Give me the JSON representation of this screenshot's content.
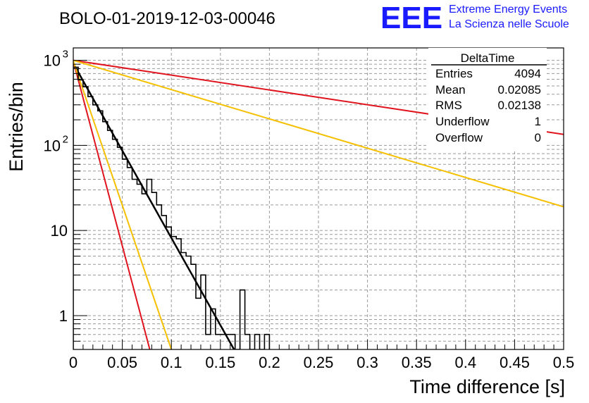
{
  "header": {
    "title": "BOLO-01-2019-12-03-00046",
    "logo": {
      "mark": "EEE",
      "line1": "Extreme Energy Events",
      "line2": "La Scienza nelle Scuole",
      "color": "#1a1aff"
    }
  },
  "stats_box": {
    "title": "DeltaTime",
    "rows": [
      {
        "label": "Entries",
        "value": "4094"
      },
      {
        "label": "Mean",
        "value": "0.02085"
      },
      {
        "label": "RMS",
        "value": "0.02138"
      },
      {
        "label": "Underflow",
        "value": "1"
      },
      {
        "label": "Overflow",
        "value": "0"
      }
    ]
  },
  "chart_data": {
    "type": "line",
    "xlabel": "Time difference [s]",
    "ylabel": "Entries/bin",
    "xlim": [
      0,
      0.5
    ],
    "ylim": [
      0.4,
      1400
    ],
    "log_y": true,
    "grid": true,
    "x_ticks": [
      0,
      0.05,
      0.1,
      0.15,
      0.2,
      0.25,
      0.3,
      0.35,
      0.4,
      0.45,
      0.5
    ],
    "x_tick_labels": [
      "0",
      "0.05",
      "0.1",
      "0.15",
      "0.2",
      "0.25",
      "0.3",
      "0.35",
      "0.4",
      "0.45",
      "0.5"
    ],
    "y_ticks": [
      {
        "value": 1,
        "label": "1"
      },
      {
        "value": 10,
        "label": "10"
      },
      {
        "value": 100,
        "label": "10",
        "exp": "2"
      },
      {
        "value": 1000,
        "label": "10",
        "exp": "3"
      }
    ],
    "histogram": {
      "bin_width": 0.005,
      "color": "#000000",
      "values": [
        830,
        590,
        490,
        375,
        300,
        255,
        190,
        150,
        118,
        95,
        69,
        55,
        40,
        35,
        27,
        40,
        28,
        20,
        15,
        11,
        8.5,
        8,
        5.5,
        5,
        4,
        1.6,
        3,
        0.6,
        1.2,
        0.6,
        0.6,
        0.6,
        0.6,
        0,
        2,
        0.6,
        0,
        0.6,
        0,
        0.6
      ]
    },
    "series": [
      {
        "color": "#000000",
        "width": 2.5,
        "points": [
          [
            0,
            920
          ],
          [
            0.165,
            0.38
          ]
        ]
      },
      {
        "color": "#e0141e",
        "width": 2,
        "points": [
          [
            0,
            980
          ],
          [
            0.078,
            0.4
          ]
        ]
      },
      {
        "color": "#f5c000",
        "width": 2,
        "points": [
          [
            0,
            980
          ],
          [
            0.1,
            0.4
          ]
        ]
      },
      {
        "color": "#e0141e",
        "width": 2,
        "points": [
          [
            0,
            1000
          ],
          [
            0.5,
            135
          ]
        ]
      },
      {
        "color": "#f5c000",
        "width": 2,
        "points": [
          [
            0,
            1000
          ],
          [
            0.5,
            19
          ]
        ]
      }
    ]
  }
}
